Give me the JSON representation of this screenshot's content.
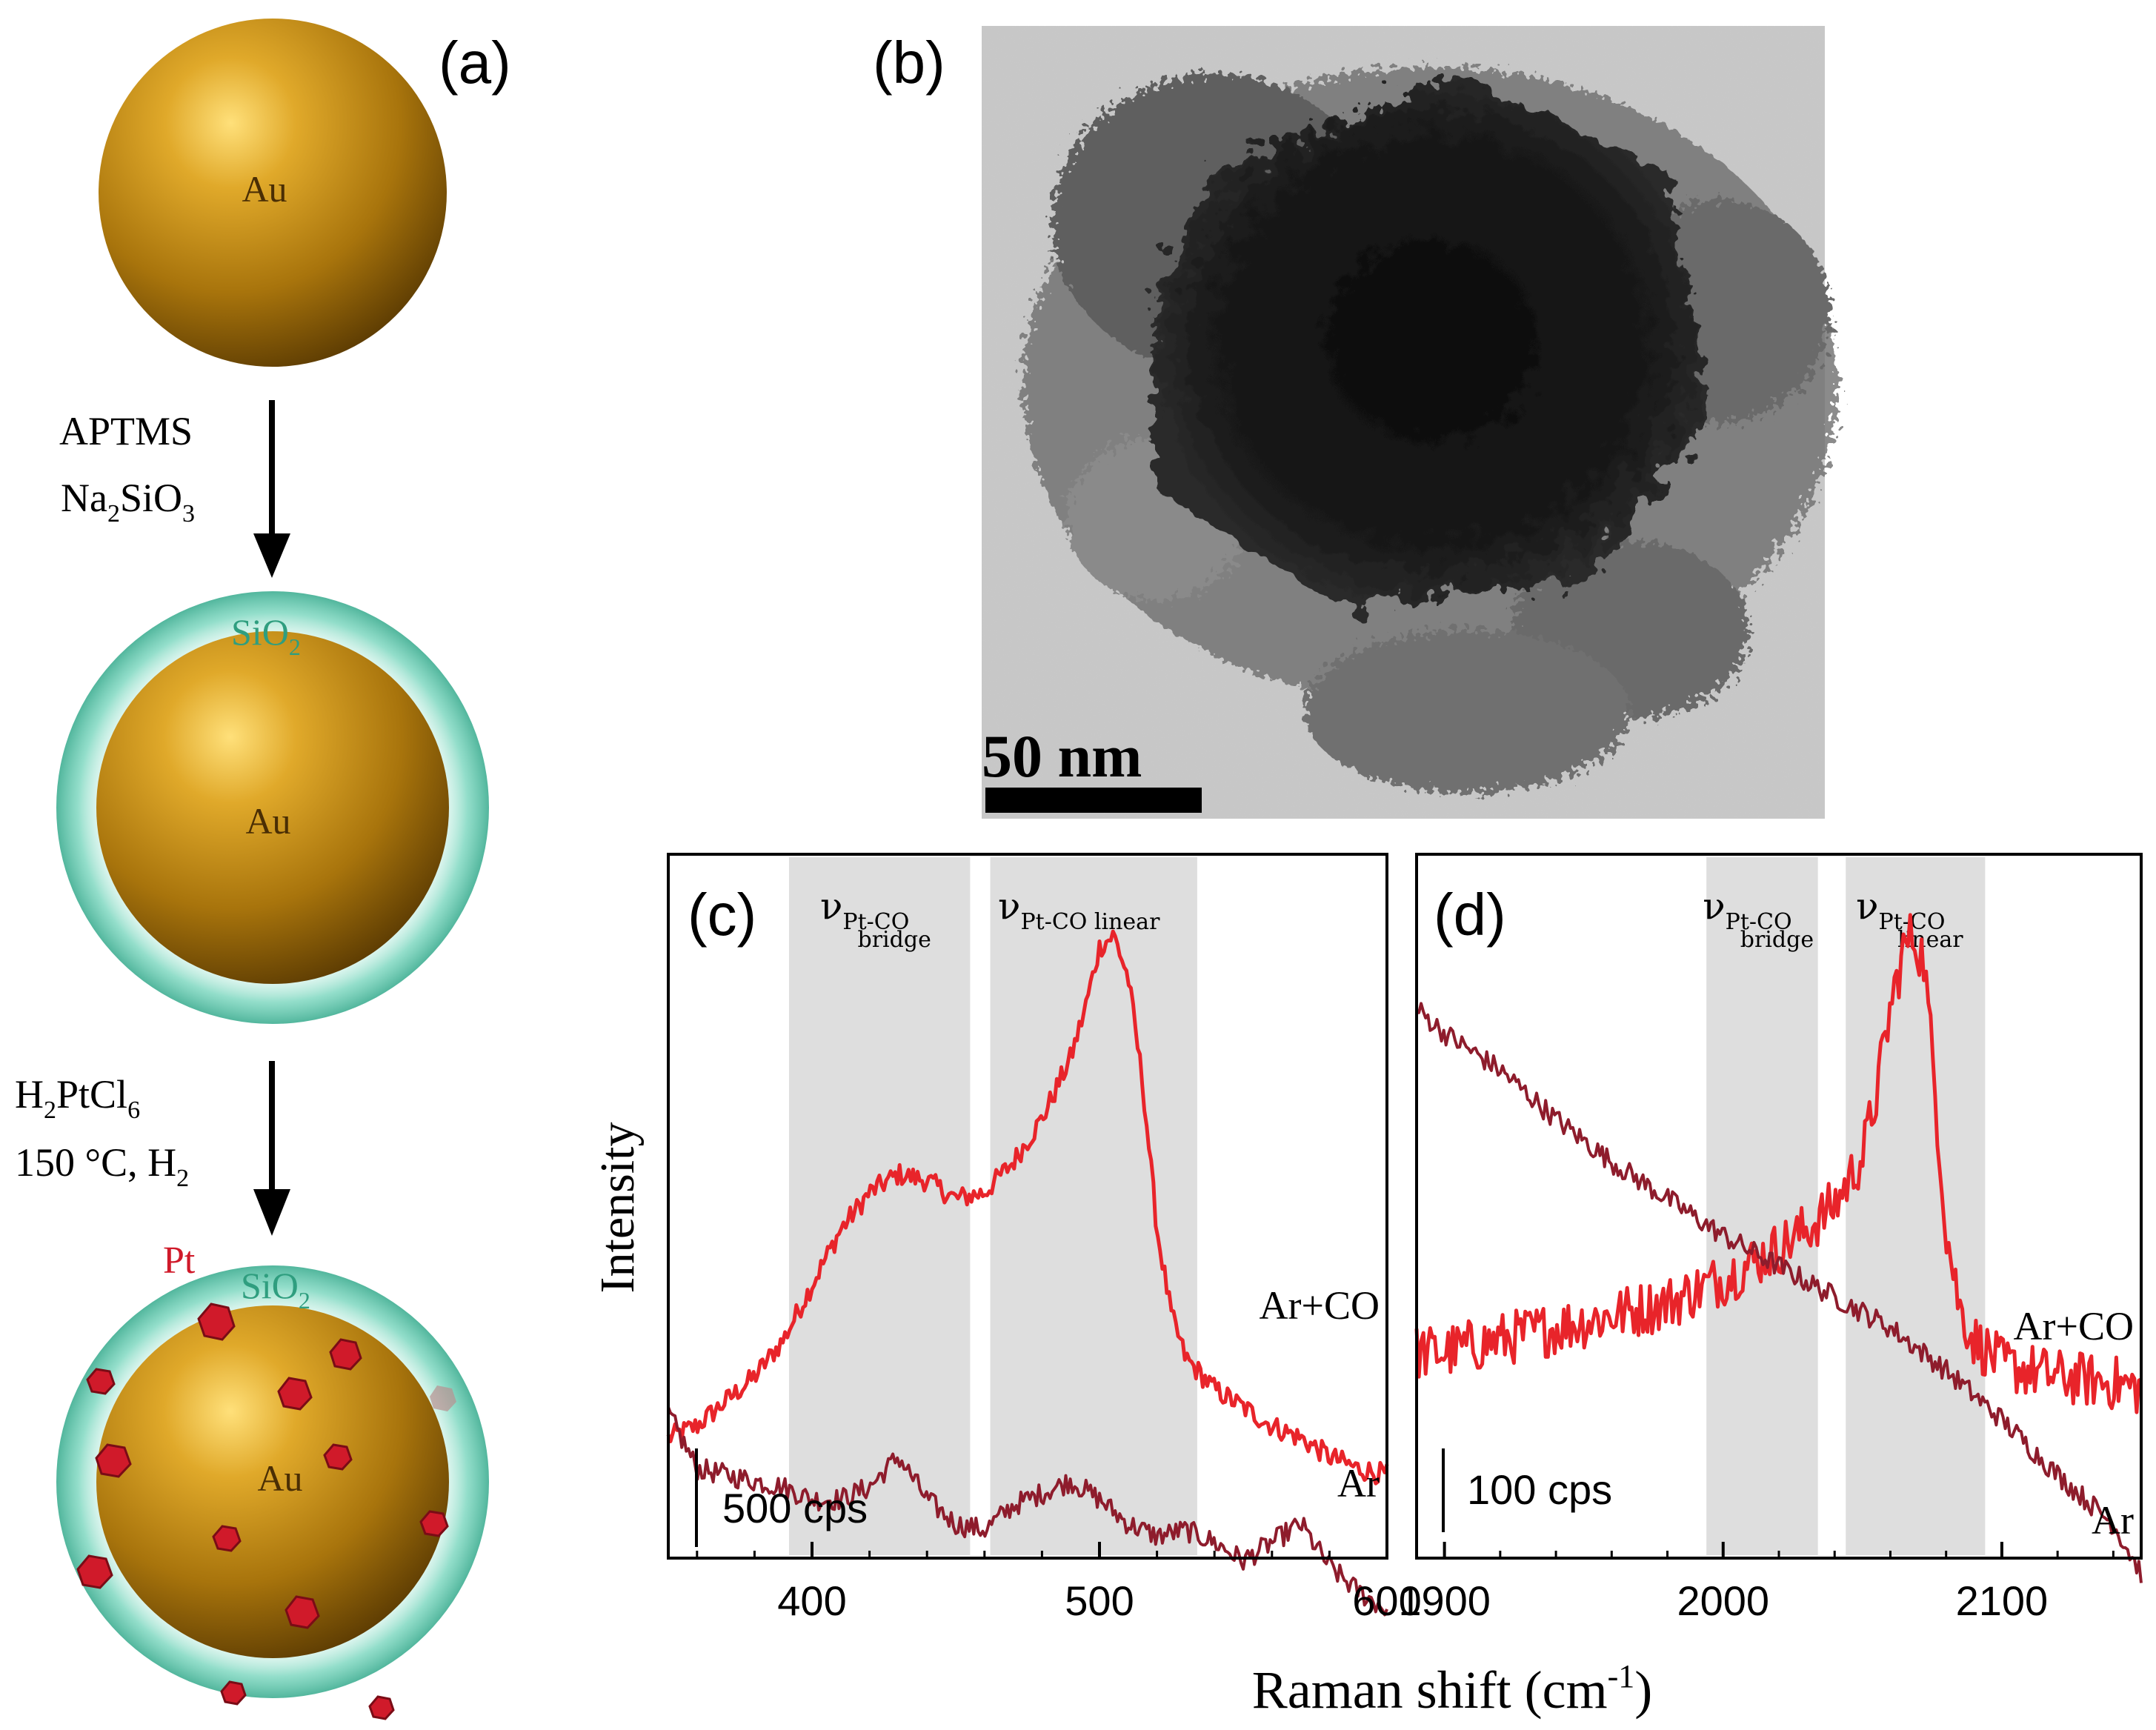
{
  "panel_labels": {
    "a": "(a)",
    "b": "(b)",
    "c": "(c)",
    "d": "(d)"
  },
  "scheme": {
    "core_label": "Au",
    "step1_line1": "APTMS",
    "step1_line2_base": "Na",
    "step1_line2_sub1": "2",
    "step1_line2_mid": "SiO",
    "step1_line2_sub2": "3",
    "shell_base": "SiO",
    "shell_sub": "2",
    "step2_line1_a": "H",
    "step2_line1_sub1": "2",
    "step2_line1_b": "PtCl",
    "step2_line1_sub2": "6",
    "step2_line2_a": "150 °C, H",
    "step2_line2_sub": "2",
    "pt_label": "Pt"
  },
  "tem": {
    "scale_bar_label": "50 nm"
  },
  "colors": {
    "ar_co": "#e8242a",
    "ar": "#8e1c2c",
    "band": "#dedede",
    "gold": "#c8941e",
    "silica": "#4fc4a8",
    "pt": "#d01a2a"
  },
  "chart_data": [
    {
      "id": "c",
      "type": "line",
      "xlim": [
        350,
        600
      ],
      "xticks": [
        400,
        500,
        600
      ],
      "tick_labels": [
        "400",
        "500",
        "600"
      ],
      "ylabel": "Intensity",
      "scale_label": "500 cps",
      "bands": [
        {
          "range": [
            392,
            455
          ],
          "label": "ν",
          "sub_top": "Pt-CO",
          "sub_bottom": "bridge"
        },
        {
          "range": [
            462,
            534
          ],
          "label": "ν",
          "sub_top": "Pt-CO linear",
          "sub_bottom": ""
        }
      ],
      "series": [
        {
          "name": "Ar+CO",
          "x": [
            350,
            360,
            370,
            380,
            390,
            400,
            410,
            420,
            430,
            440,
            450,
            460,
            470,
            480,
            490,
            495,
            500,
            505,
            510,
            515,
            520,
            525,
            530,
            540,
            550,
            560,
            570,
            580,
            590,
            600
          ],
          "y": [
            0.18,
            0.2,
            0.24,
            0.28,
            0.34,
            0.43,
            0.52,
            0.58,
            0.61,
            0.6,
            0.57,
            0.58,
            0.63,
            0.7,
            0.8,
            0.88,
            0.98,
            1.0,
            0.93,
            0.76,
            0.52,
            0.38,
            0.31,
            0.26,
            0.23,
            0.2,
            0.18,
            0.15,
            0.13,
            0.12
          ]
        },
        {
          "name": "Ar",
          "x": [
            350,
            360,
            370,
            380,
            390,
            400,
            410,
            420,
            430,
            440,
            450,
            460,
            470,
            480,
            490,
            500,
            510,
            520,
            530,
            540,
            550,
            560,
            570,
            580,
            590,
            600
          ],
          "y": [
            0.22,
            0.13,
            0.12,
            0.11,
            0.1,
            0.08,
            0.08,
            0.1,
            0.15,
            0.08,
            0.04,
            0.03,
            0.07,
            0.09,
            0.11,
            0.08,
            0.04,
            0.02,
            0.03,
            0.01,
            -0.02,
            0.01,
            0.04,
            -0.03,
            -0.07,
            -0.1
          ]
        }
      ]
    },
    {
      "id": "d",
      "type": "line",
      "xlim": [
        1890,
        2150
      ],
      "xticks": [
        1900,
        2000,
        2100
      ],
      "tick_labels": [
        "1900",
        "2000",
        "2100"
      ],
      "xlabel": "Raman shift (cm",
      "xlabel_sup": "-1",
      "xlabel_end": ")",
      "scale_label": "100 cps",
      "bands": [
        {
          "range": [
            1994,
            2034
          ],
          "label": "ν",
          "sub_top": "Pt-CO",
          "sub_bottom": "bridge"
        },
        {
          "range": [
            2044,
            2094
          ],
          "label": "ν",
          "sub_top": "Pt-CO",
          "sub_bottom": "linear"
        }
      ],
      "series": [
        {
          "name": "Ar+CO",
          "x": [
            1890,
            1900,
            1920,
            1940,
            1960,
            1980,
            2000,
            2020,
            2030,
            2040,
            2050,
            2055,
            2060,
            2065,
            2068,
            2072,
            2076,
            2080,
            2085,
            2090,
            2100,
            2120,
            2140,
            2150
          ],
          "y": [
            0.32,
            0.32,
            0.34,
            0.36,
            0.38,
            0.4,
            0.44,
            0.49,
            0.52,
            0.56,
            0.64,
            0.74,
            0.88,
            0.98,
            1.0,
            0.96,
            0.75,
            0.52,
            0.39,
            0.34,
            0.3,
            0.28,
            0.27,
            0.26
          ]
        },
        {
          "name": "Ar",
          "x": [
            1890,
            1900,
            1920,
            1940,
            1960,
            1980,
            2000,
            2020,
            2040,
            2060,
            2080,
            2100,
            2120,
            2140,
            2150
          ],
          "y": [
            0.88,
            0.84,
            0.78,
            0.7,
            0.63,
            0.57,
            0.51,
            0.46,
            0.41,
            0.36,
            0.29,
            0.21,
            0.12,
            0.04,
            -0.04
          ]
        }
      ]
    }
  ]
}
